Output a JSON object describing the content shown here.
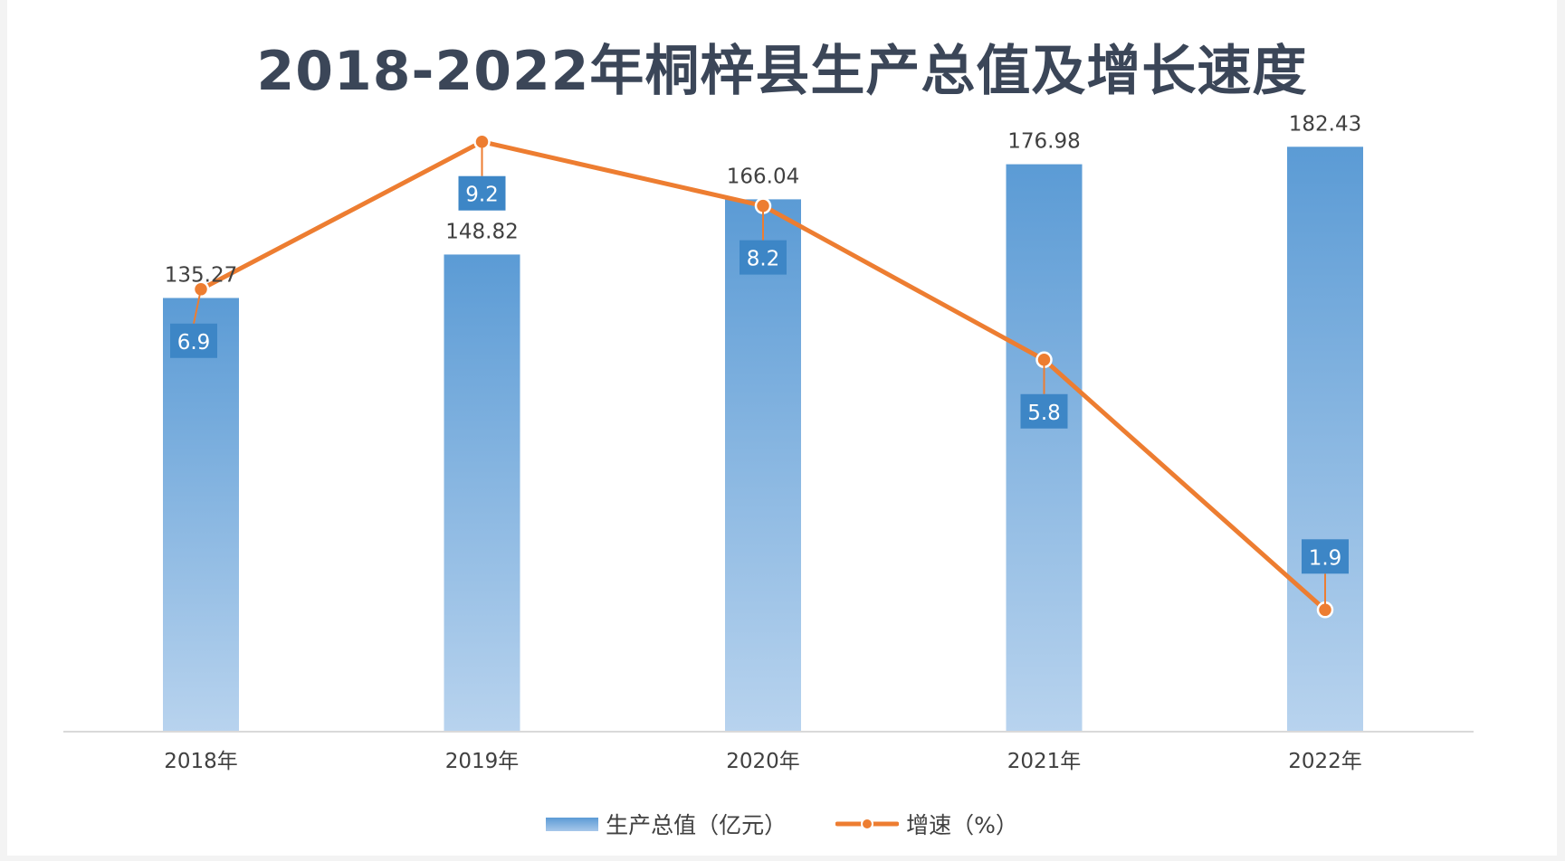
{
  "chart_data": {
    "type": "bar+line",
    "title": "2018-2022年桐梓县生产总值及增长速度",
    "categories": [
      "2018年",
      "2019年",
      "2020年",
      "2021年",
      "2022年"
    ],
    "series": [
      {
        "name": "生产总值（亿元）",
        "type": "bar",
        "axis": "left",
        "values": [
          135.27,
          148.82,
          166.04,
          176.98,
          182.43
        ],
        "labels": [
          "135.27",
          "148.82",
          "166.04",
          "176.98",
          "182.43"
        ],
        "color": "#5b9bd5"
      },
      {
        "name": "增速（%）",
        "type": "line",
        "axis": "right",
        "values": [
          6.9,
          9.2,
          8.2,
          5.8,
          1.9
        ],
        "labels": [
          "6.9",
          "9.2",
          "8.2",
          "5.8",
          "1.9"
        ],
        "color": "#ed7d31"
      }
    ],
    "ylim_left": [
      0,
      200
    ],
    "ylim_right": [
      0,
      10
    ],
    "grid": false,
    "legend_position": "bottom"
  }
}
